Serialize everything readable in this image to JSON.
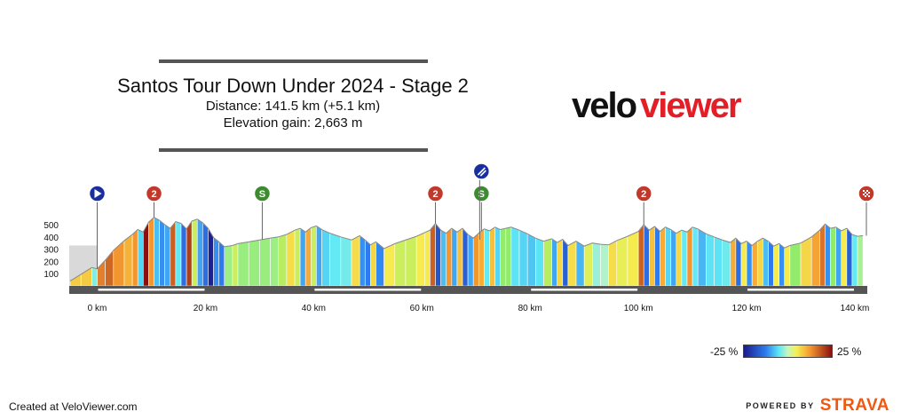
{
  "header": {
    "title": "Santos Tour Down Under 2024 - Stage 2",
    "distance": "Distance: 141.5 km (+5.1 km)",
    "elevation_gain": "Elevation gain: 2,663 m"
  },
  "brand": {
    "logo_text_left": "velo",
    "logo_text_right": "viewer"
  },
  "footer": {
    "created_at": "Created at VeloViewer.com",
    "powered_by": "POWERED BY",
    "strava": "STRAVA"
  },
  "legend": {
    "min_label": "-25 %",
    "max_label": "25 %"
  },
  "colors": {
    "logo_red": "#e31e26",
    "strava_orange": "#f2560f",
    "axis_dark": "#555555",
    "profile_stroke": "#888888"
  },
  "chart_data": {
    "type": "area",
    "x_unit": "km",
    "y_unit": "m",
    "xlim": [
      -5,
      141.5
    ],
    "ylim": [
      0,
      600
    ],
    "x_ticks": [
      0,
      20,
      40,
      60,
      80,
      100,
      120,
      140
    ],
    "x_tick_labels": [
      "0 km",
      "20 km",
      "40 km",
      "60 km",
      "80 km",
      "100 km",
      "120 km",
      "140 km"
    ],
    "y_ticks": [
      100,
      200,
      300,
      400,
      500
    ],
    "y_tick_labels": [
      "100",
      "200",
      "300",
      "400",
      "500"
    ],
    "lead_in": {
      "x": [
        -5,
        0
      ],
      "elevation": [
        330,
        330
      ]
    },
    "profile": [
      [
        -5,
        40
      ],
      [
        -3,
        95
      ],
      [
        -1,
        150
      ],
      [
        0,
        140
      ],
      [
        1.5,
        210
      ],
      [
        3,
        290
      ],
      [
        5,
        370
      ],
      [
        6.5,
        420
      ],
      [
        7.5,
        460
      ],
      [
        8.5,
        440
      ],
      [
        9.5,
        520
      ],
      [
        10.5,
        560
      ],
      [
        11.5,
        535
      ],
      [
        12.5,
        500
      ],
      [
        13.5,
        470
      ],
      [
        14.5,
        525
      ],
      [
        15.5,
        510
      ],
      [
        16.5,
        465
      ],
      [
        17.5,
        530
      ],
      [
        18.5,
        545
      ],
      [
        19.5,
        515
      ],
      [
        20.5,
        470
      ],
      [
        21.5,
        395
      ],
      [
        22.5,
        360
      ],
      [
        23.5,
        320
      ],
      [
        25,
        330
      ],
      [
        26,
        345
      ],
      [
        28,
        360
      ],
      [
        30,
        375
      ],
      [
        32,
        390
      ],
      [
        33.5,
        400
      ],
      [
        35,
        420
      ],
      [
        36.5,
        455
      ],
      [
        37.5,
        470
      ],
      [
        38.5,
        440
      ],
      [
        39.5,
        475
      ],
      [
        40.5,
        490
      ],
      [
        41.5,
        460
      ],
      [
        43,
        430
      ],
      [
        45,
        400
      ],
      [
        47,
        375
      ],
      [
        48.5,
        410
      ],
      [
        49.5,
        375
      ],
      [
        50.5,
        335
      ],
      [
        51.5,
        360
      ],
      [
        53,
        305
      ],
      [
        55,
        345
      ],
      [
        57,
        375
      ],
      [
        59,
        405
      ],
      [
        60.5,
        435
      ],
      [
        61.5,
        455
      ],
      [
        62.5,
        510
      ],
      [
        63.5,
        455
      ],
      [
        64.5,
        430
      ],
      [
        65.5,
        470
      ],
      [
        66.5,
        440
      ],
      [
        67.5,
        470
      ],
      [
        68.5,
        420
      ],
      [
        69.5,
        390
      ],
      [
        70.5,
        430
      ],
      [
        71.5,
        465
      ],
      [
        72.5,
        450
      ],
      [
        73.5,
        480
      ],
      [
        74.5,
        460
      ],
      [
        75.5,
        470
      ],
      [
        76.5,
        480
      ],
      [
        78,
        455
      ],
      [
        79.5,
        425
      ],
      [
        81,
        390
      ],
      [
        82.5,
        365
      ],
      [
        84,
        385
      ],
      [
        85,
        355
      ],
      [
        86,
        380
      ],
      [
        87,
        330
      ],
      [
        88.5,
        365
      ],
      [
        90,
        325
      ],
      [
        91.5,
        350
      ],
      [
        93,
        340
      ],
      [
        94.5,
        335
      ],
      [
        96,
        370
      ],
      [
        98,
        405
      ],
      [
        100,
        445
      ],
      [
        101,
        500
      ],
      [
        102,
        455
      ],
      [
        103,
        485
      ],
      [
        104,
        445
      ],
      [
        105,
        480
      ],
      [
        106,
        460
      ],
      [
        107,
        430
      ],
      [
        108,
        455
      ],
      [
        109,
        440
      ],
      [
        110,
        480
      ],
      [
        111,
        465
      ],
      [
        112.5,
        425
      ],
      [
        114,
        400
      ],
      [
        115.5,
        375
      ],
      [
        117,
        355
      ],
      [
        118,
        390
      ],
      [
        119,
        345
      ],
      [
        120,
        365
      ],
      [
        121,
        330
      ],
      [
        122,
        365
      ],
      [
        123,
        390
      ],
      [
        124,
        365
      ],
      [
        125,
        325
      ],
      [
        126,
        345
      ],
      [
        127,
        310
      ],
      [
        128,
        330
      ],
      [
        130,
        350
      ],
      [
        132,
        400
      ],
      [
        133.5,
        455
      ],
      [
        134.5,
        505
      ],
      [
        135.5,
        470
      ],
      [
        136.5,
        480
      ],
      [
        137.5,
        450
      ],
      [
        138.5,
        470
      ],
      [
        139.5,
        420
      ],
      [
        140.5,
        405
      ],
      [
        141.5,
        410
      ]
    ],
    "markers": [
      {
        "km": 0,
        "type": "start",
        "label": "",
        "icon": "play-icon"
      },
      {
        "km": 10.5,
        "type": "kom",
        "label": "2",
        "icon": "kom-circle"
      },
      {
        "km": 30.5,
        "type": "sprint",
        "label": "S",
        "icon": "sprint-circle"
      },
      {
        "km": 62.5,
        "type": "kom",
        "label": "2",
        "icon": "kom-circle"
      },
      {
        "km": 71,
        "type": "sprint",
        "label": "S",
        "icon": "sprint-circle"
      },
      {
        "km": 71,
        "type": "feed",
        "label": "",
        "icon": "feed-zone-icon"
      },
      {
        "km": 101,
        "type": "kom",
        "label": "2",
        "icon": "kom-circle"
      },
      {
        "km": 141.5,
        "type": "finish",
        "label": "",
        "icon": "checkered-flag-icon"
      }
    ],
    "gradient_scale": {
      "min_percent": -25,
      "max_percent": 25
    },
    "grid": false,
    "legend_position": "bottom-right"
  }
}
